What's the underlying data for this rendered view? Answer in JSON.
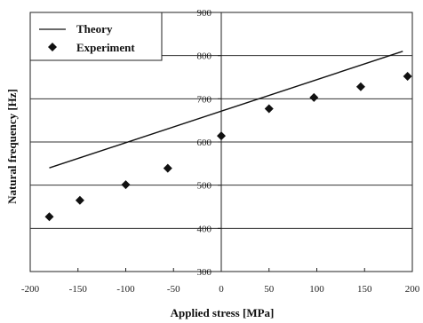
{
  "chart_data": {
    "type": "scatter",
    "xlabel": "Applied stress [MPa]",
    "ylabel": "Natural frequency [Hz]",
    "xlim": [
      -200,
      200
    ],
    "ylim": [
      300,
      900
    ],
    "x_ticks": [
      -200,
      -150,
      -100,
      -50,
      0,
      50,
      100,
      150,
      200
    ],
    "y_ticks": [
      300,
      400,
      500,
      600,
      700,
      800,
      900
    ],
    "grid": "horizontal",
    "legend_position": "top-left",
    "series": [
      {
        "name": "Theory",
        "kind": "line",
        "color": "#111111",
        "x": [
          -180,
          190
        ],
        "y": [
          540,
          810
        ]
      },
      {
        "name": "Experiment",
        "kind": "marker",
        "marker": "diamond",
        "color": "#111111",
        "x": [
          -180,
          -148,
          -100,
          -56,
          0,
          50,
          97,
          146,
          195
        ],
        "y": [
          427,
          465,
          501,
          539,
          614,
          677,
          703,
          728,
          752
        ]
      }
    ]
  }
}
